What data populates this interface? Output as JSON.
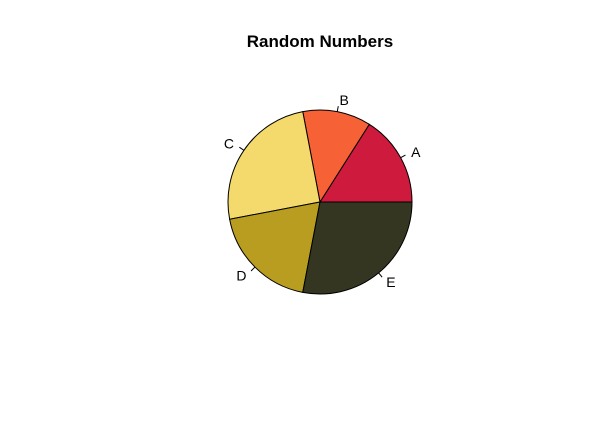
{
  "chart_data": {
    "type": "pie",
    "title": "Random Numbers",
    "labels": [
      "A",
      "B",
      "C",
      "D",
      "E"
    ],
    "values": [
      16,
      12,
      25,
      19,
      28
    ],
    "colors": [
      "#CD1A3D",
      "#F66135",
      "#F4DA6C",
      "#B89D20",
      "#353621"
    ],
    "start_angle_deg": 0,
    "direction": "counterclockwise"
  }
}
